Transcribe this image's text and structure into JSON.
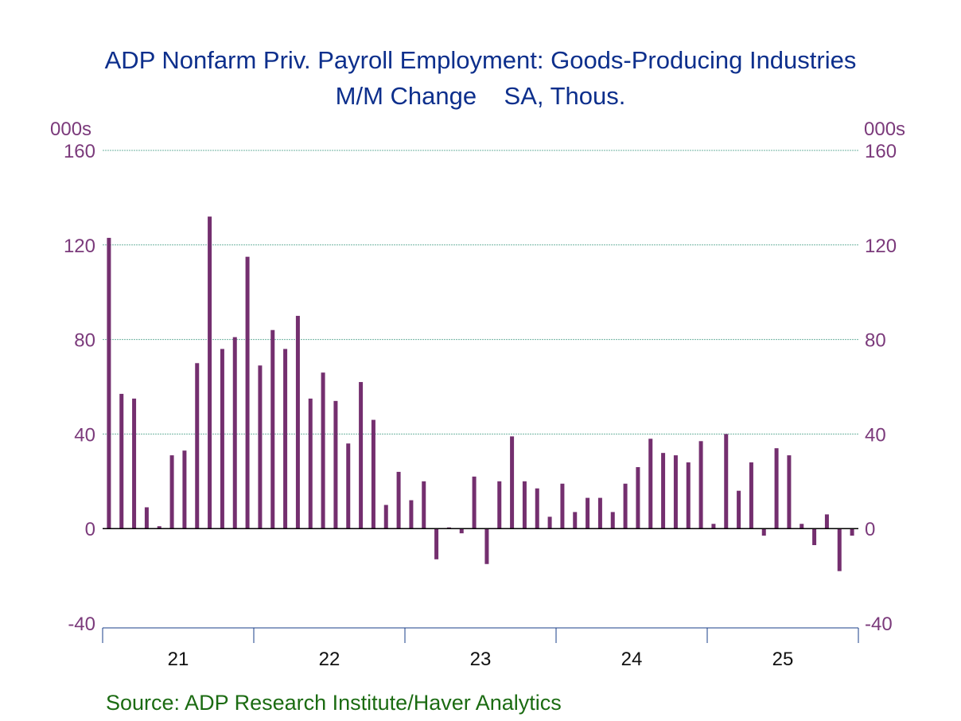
{
  "colors": {
    "bar": "#742f6f",
    "title": "#0d2f8c",
    "axis_text": "#7b3a7b",
    "grid": "#6fb3a0",
    "source": "#1b6b12"
  },
  "chart_data": {
    "type": "bar",
    "title": "ADP Nonfarm Priv. Payroll Employment: Goods-Producing Industries",
    "subtitle": "M/M Change    SA, Thous.",
    "ylabel_left": "000s",
    "ylabel_right": "000s",
    "ylim": [
      -40,
      160
    ],
    "yticks": [
      -40,
      0,
      40,
      80,
      120,
      160
    ],
    "grid": true,
    "x_start": "2021-01",
    "x_end": "2025-12",
    "year_labels": [
      "21",
      "22",
      "23",
      "24",
      "25"
    ],
    "values": [
      123,
      57,
      55,
      9,
      1,
      31,
      33,
      70,
      132,
      76,
      81,
      115,
      69,
      84,
      76,
      90,
      55,
      66,
      54,
      36,
      62,
      46,
      10,
      24,
      12,
      20,
      -13,
      0.5,
      -2,
      22,
      -15,
      20,
      39,
      20,
      17,
      5,
      19,
      7,
      13,
      13,
      7,
      19,
      26,
      38,
      32,
      31,
      28,
      37,
      2,
      40,
      16,
      28,
      -3,
      34,
      31,
      2,
      -7,
      6,
      -18,
      -3
    ]
  },
  "source": "Source:  ADP Research Institute/Haver Analytics"
}
